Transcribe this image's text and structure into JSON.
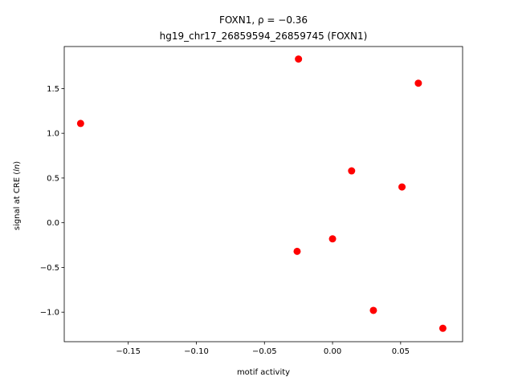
{
  "chart_data": {
    "type": "scatter",
    "title_line1": "FOXN1, ρ = −0.36",
    "title_line2": "hg19_chr17_26859594_26859745 (FOXN1)",
    "xlabel": "motif activity",
    "ylabel": "signal at CRE (ln)",
    "xlim": [
      -0.197,
      0.0955
    ],
    "ylim": [
      -1.33,
      1.97
    ],
    "xticks": [
      -0.15,
      -0.1,
      -0.05,
      0.0,
      0.05
    ],
    "xtick_labels": [
      "−0.15",
      "−0.10",
      "−0.05",
      "0.00",
      "0.05"
    ],
    "yticks": [
      -1.0,
      -0.5,
      0.0,
      0.5,
      1.0,
      1.5
    ],
    "ytick_labels": [
      "−1.0",
      "−0.5",
      "0.0",
      "0.5",
      "1.0",
      "1.5"
    ],
    "marker_color": "#ff0000",
    "points": [
      {
        "x": -0.185,
        "y": 1.11
      },
      {
        "x": -0.025,
        "y": 1.83
      },
      {
        "x": 0.063,
        "y": 1.56
      },
      {
        "x": 0.014,
        "y": 0.58
      },
      {
        "x": 0.051,
        "y": 0.4
      },
      {
        "x": 0.0,
        "y": -0.18
      },
      {
        "x": -0.026,
        "y": -0.32
      },
      {
        "x": 0.03,
        "y": -0.98
      },
      {
        "x": 0.081,
        "y": -1.18
      }
    ]
  }
}
